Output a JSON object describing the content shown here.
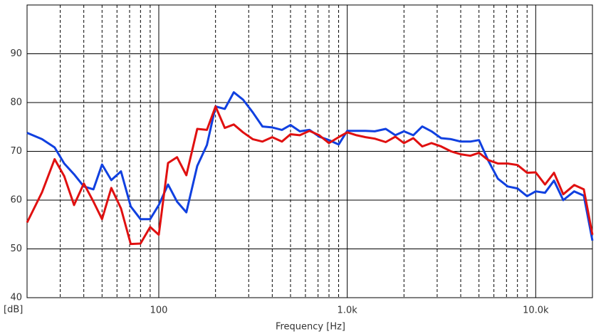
{
  "chart_data": {
    "type": "line",
    "x_label": "Frequency [Hz]",
    "y_label": "[dB]",
    "xscale": "log",
    "xlim": [
      20,
      20000
    ],
    "ylim": [
      40,
      100
    ],
    "xticks": [
      100,
      {
        "value": 1000,
        "label": "1.0k"
      },
      {
        "value": 10000,
        "label": "10.0k"
      }
    ],
    "xgrid_minor": [
      30,
      40,
      50,
      60,
      70,
      80,
      90,
      200,
      300,
      400,
      500,
      600,
      700,
      800,
      900,
      2000,
      3000,
      4000,
      5000,
      6000,
      7000,
      8000,
      9000
    ],
    "yticks": [
      40,
      50,
      60,
      70,
      80,
      90
    ],
    "grid": true,
    "x": [
      20,
      24,
      28,
      31.5,
      35.5,
      40,
      45,
      50,
      56,
      63,
      71,
      80,
      90,
      100,
      112,
      125,
      140,
      160,
      180,
      200,
      224,
      250,
      280,
      315,
      355,
      400,
      450,
      500,
      560,
      630,
      710,
      800,
      900,
      1000,
      1120,
      1250,
      1400,
      1600,
      1800,
      2000,
      2240,
      2500,
      2800,
      3150,
      3550,
      4000,
      4500,
      5000,
      5600,
      6300,
      7100,
      8000,
      9000,
      10000,
      11200,
      12500,
      14000,
      16000,
      18000,
      20000
    ],
    "series": [
      {
        "color": "#1040e0",
        "values": [
          73.8,
          72.5,
          70.8,
          67.5,
          65.3,
          62.8,
          62.2,
          67.3,
          64.1,
          65.9,
          58.7,
          56.1,
          56.1,
          59.0,
          63.2,
          59.7,
          57.5,
          67.0,
          71.3,
          79.2,
          78.7,
          82.1,
          80.6,
          78.0,
          75.1,
          74.9,
          74.4,
          75.4,
          74.1,
          74.4,
          73.0,
          72.3,
          71.4,
          74.2,
          74.2,
          74.2,
          74.1,
          74.6,
          73.3,
          74.1,
          73.3,
          75.1,
          74.1,
          72.7,
          72.5,
          72.0,
          72.0,
          72.3,
          68.1,
          64.4,
          62.8,
          62.4,
          60.8,
          61.8,
          61.5,
          64.0,
          60.0,
          61.8,
          60.9,
          51.7
        ]
      },
      {
        "color": "#e01010",
        "values": [
          55.4,
          61.6,
          68.4,
          64.9,
          59.0,
          63.4,
          59.7,
          56.1,
          62.5,
          58.3,
          51.0,
          51.1,
          54.5,
          52.9,
          67.6,
          68.8,
          65.1,
          74.6,
          74.4,
          79.2,
          74.8,
          75.5,
          73.9,
          72.5,
          72.0,
          72.9,
          72.0,
          73.5,
          73.3,
          74.2,
          73.3,
          71.7,
          72.9,
          73.9,
          73.3,
          72.9,
          72.6,
          71.9,
          73.0,
          71.7,
          72.7,
          71.0,
          71.7,
          71.0,
          70.0,
          69.4,
          69.1,
          69.7,
          68.2,
          67.5,
          67.5,
          67.2,
          65.6,
          65.7,
          63.2,
          65.6,
          61.2,
          63.1,
          62.2,
          52.9
        ]
      }
    ]
  }
}
